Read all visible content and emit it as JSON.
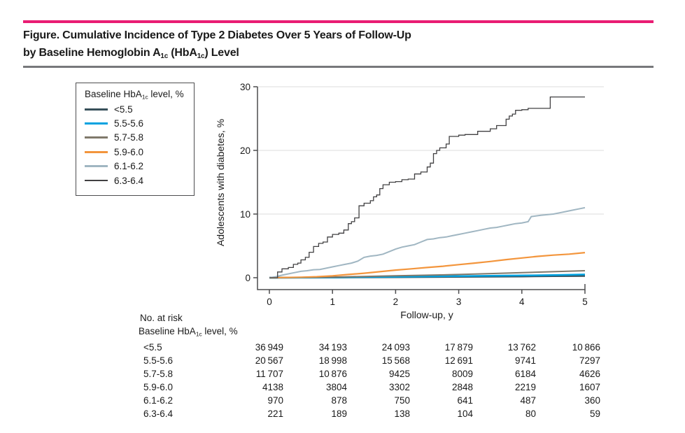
{
  "figure": {
    "title_line1": "Figure. Cumulative Incidence of Type 2 Diabetes Over 5 Years of Follow-Up",
    "title_line2_p1": "by Baseline Hemoglobin A",
    "title_line2_sub1": "1c",
    "title_line2_p2": " (HbA",
    "title_line2_sub2": "1c",
    "title_line2_p3": ") Level"
  },
  "colors": {
    "accent_rule": "#E91D73",
    "gray_rule": "#77787B",
    "axis": "#4D4D4F",
    "grid": "#E3E3E3",
    "text": "#1A1A1A"
  },
  "legend": {
    "title_prefix": "Baseline HbA",
    "title_sub": "1c",
    "title_suffix": " level, %",
    "items": [
      {
        "label": "<5.5",
        "color": "#37505A",
        "thickness": 3
      },
      {
        "label": "5.5-5.6",
        "color": "#00A2E0",
        "thickness": 3
      },
      {
        "label": "5.7-5.8",
        "color": "#80796B",
        "thickness": 3
      },
      {
        "label": "5.9-6.0",
        "color": "#F3953C",
        "thickness": 3
      },
      {
        "label": "6.1-6.2",
        "color": "#A0B6C2",
        "thickness": 3
      },
      {
        "label": "6.3-6.4",
        "color": "#414042",
        "thickness": 1.5
      }
    ]
  },
  "chart_data": {
    "type": "line",
    "subtype": "kaplan-meier cumulative incidence",
    "xlabel": "Follow-up, y",
    "ylabel": "Adolescents with diabetes, %",
    "xlim": [
      0,
      5
    ],
    "ylim": [
      0,
      30
    ],
    "x_ticks": [
      "0",
      "1",
      "2",
      "3",
      "4",
      "5"
    ],
    "y_ticks": [
      "0",
      "10",
      "20",
      "30"
    ],
    "y_gridlines": [
      10,
      20,
      30
    ],
    "legend_position": "outside-left-top",
    "series": [
      {
        "name": "<5.5",
        "color": "#37505A",
        "width": 2.5,
        "step": false,
        "points": [
          [
            0,
            0
          ],
          [
            1,
            0.03
          ],
          [
            2,
            0.08
          ],
          [
            3,
            0.13
          ],
          [
            4,
            0.2
          ],
          [
            4.5,
            0.24
          ],
          [
            5,
            0.28
          ]
        ]
      },
      {
        "name": "5.5-5.6",
        "color": "#00A2E0",
        "width": 2.5,
        "step": false,
        "points": [
          [
            0,
            0
          ],
          [
            1,
            0.05
          ],
          [
            2,
            0.15
          ],
          [
            3,
            0.25
          ],
          [
            4,
            0.35
          ],
          [
            4.5,
            0.42
          ],
          [
            5,
            0.5
          ]
        ]
      },
      {
        "name": "5.7-5.8",
        "color": "#80796B",
        "width": 2,
        "step": false,
        "points": [
          [
            0,
            0
          ],
          [
            0.5,
            0.05
          ],
          [
            1,
            0.1
          ],
          [
            1.5,
            0.2
          ],
          [
            2,
            0.3
          ],
          [
            2.5,
            0.4
          ],
          [
            3,
            0.5
          ],
          [
            3.5,
            0.65
          ],
          [
            4,
            0.8
          ],
          [
            4.5,
            0.95
          ],
          [
            5,
            1.1
          ]
        ]
      },
      {
        "name": "5.9-6.0",
        "color": "#F3953C",
        "width": 2.2,
        "step": false,
        "points": [
          [
            0,
            0
          ],
          [
            0.5,
            0.08
          ],
          [
            0.75,
            0.15
          ],
          [
            1,
            0.3
          ],
          [
            1.25,
            0.5
          ],
          [
            1.5,
            0.7
          ],
          [
            1.75,
            0.95
          ],
          [
            2,
            1.2
          ],
          [
            2.25,
            1.4
          ],
          [
            2.5,
            1.6
          ],
          [
            2.75,
            1.8
          ],
          [
            3,
            2.05
          ],
          [
            3.25,
            2.3
          ],
          [
            3.5,
            2.55
          ],
          [
            3.75,
            2.85
          ],
          [
            4,
            3.1
          ],
          [
            4.25,
            3.35
          ],
          [
            4.5,
            3.55
          ],
          [
            4.75,
            3.7
          ],
          [
            5,
            3.95
          ]
        ]
      },
      {
        "name": "6.1-6.2",
        "color": "#A0B6C2",
        "width": 2,
        "step": false,
        "points": [
          [
            0,
            0
          ],
          [
            0.1,
            0.15
          ],
          [
            0.2,
            0.4
          ],
          [
            0.3,
            0.6
          ],
          [
            0.4,
            0.8
          ],
          [
            0.5,
            1.0
          ],
          [
            0.6,
            1.1
          ],
          [
            0.7,
            1.25
          ],
          [
            0.8,
            1.3
          ],
          [
            0.9,
            1.5
          ],
          [
            1,
            1.7
          ],
          [
            1.1,
            1.9
          ],
          [
            1.2,
            2.1
          ],
          [
            1.3,
            2.3
          ],
          [
            1.4,
            2.6
          ],
          [
            1.5,
            3.2
          ],
          [
            1.6,
            3.4
          ],
          [
            1.7,
            3.5
          ],
          [
            1.8,
            3.7
          ],
          [
            1.9,
            4.1
          ],
          [
            2,
            4.5
          ],
          [
            2.1,
            4.8
          ],
          [
            2.2,
            5.0
          ],
          [
            2.3,
            5.2
          ],
          [
            2.4,
            5.6
          ],
          [
            2.5,
            6.0
          ],
          [
            2.6,
            6.1
          ],
          [
            2.7,
            6.3
          ],
          [
            2.8,
            6.4
          ],
          [
            2.9,
            6.6
          ],
          [
            3,
            6.8
          ],
          [
            3.1,
            7.0
          ],
          [
            3.2,
            7.2
          ],
          [
            3.3,
            7.4
          ],
          [
            3.4,
            7.6
          ],
          [
            3.5,
            7.8
          ],
          [
            3.6,
            7.9
          ],
          [
            3.7,
            8.1
          ],
          [
            3.8,
            8.3
          ],
          [
            3.9,
            8.5
          ],
          [
            4,
            8.6
          ],
          [
            4.1,
            8.8
          ],
          [
            4.15,
            9.6
          ],
          [
            4.3,
            9.8
          ],
          [
            4.4,
            9.9
          ],
          [
            4.5,
            10.0
          ],
          [
            4.6,
            10.2
          ],
          [
            4.7,
            10.4
          ],
          [
            4.8,
            10.6
          ],
          [
            4.9,
            10.8
          ],
          [
            5,
            11.0
          ]
        ]
      },
      {
        "name": "6.3-6.4",
        "color": "#414042",
        "width": 1.3,
        "step": true,
        "points": [
          [
            0,
            0
          ],
          [
            0.13,
            0.9
          ],
          [
            0.2,
            1.4
          ],
          [
            0.3,
            1.6
          ],
          [
            0.38,
            2.1
          ],
          [
            0.45,
            2.3
          ],
          [
            0.5,
            2.8
          ],
          [
            0.57,
            3.2
          ],
          [
            0.63,
            4.0
          ],
          [
            0.7,
            4.9
          ],
          [
            0.78,
            5.4
          ],
          [
            0.85,
            5.6
          ],
          [
            0.92,
            6.4
          ],
          [
            1.0,
            6.8
          ],
          [
            1.1,
            7.0
          ],
          [
            1.18,
            7.5
          ],
          [
            1.25,
            8.5
          ],
          [
            1.3,
            8.8
          ],
          [
            1.35,
            9.4
          ],
          [
            1.42,
            11.3
          ],
          [
            1.5,
            11.7
          ],
          [
            1.6,
            12.1
          ],
          [
            1.65,
            12.7
          ],
          [
            1.7,
            13.0
          ],
          [
            1.75,
            14.0
          ],
          [
            1.8,
            14.6
          ],
          [
            1.9,
            15.0
          ],
          [
            2.0,
            15.1
          ],
          [
            2.1,
            15.4
          ],
          [
            2.2,
            15.5
          ],
          [
            2.3,
            16.3
          ],
          [
            2.4,
            16.6
          ],
          [
            2.5,
            17.4
          ],
          [
            2.55,
            18.0
          ],
          [
            2.6,
            19.5
          ],
          [
            2.65,
            20.0
          ],
          [
            2.7,
            20.4
          ],
          [
            2.8,
            21.0
          ],
          [
            2.85,
            22.2
          ],
          [
            3.0,
            22.4
          ],
          [
            3.1,
            22.5
          ],
          [
            3.3,
            23.0
          ],
          [
            3.5,
            23.4
          ],
          [
            3.6,
            23.9
          ],
          [
            3.75,
            24.9
          ],
          [
            3.8,
            25.4
          ],
          [
            3.85,
            25.7
          ],
          [
            3.9,
            26.3
          ],
          [
            4.0,
            26.4
          ],
          [
            4.1,
            26.6
          ],
          [
            4.45,
            28.4
          ],
          [
            5.0,
            28.4
          ]
        ]
      }
    ]
  },
  "risk_table": {
    "header": "No. at risk",
    "subheader_prefix": "Baseline HbA",
    "subheader_sub": "1c",
    "subheader_suffix": " level, %",
    "rows": [
      {
        "label": "<5.5",
        "values": [
          "36 949",
          "34 193",
          "24 093",
          "17 879",
          "13 762",
          "10 866"
        ]
      },
      {
        "label": "5.5-5.6",
        "values": [
          "20 567",
          "18 998",
          "15 568",
          "12 691",
          "9741",
          "7297"
        ]
      },
      {
        "label": "5.7-5.8",
        "values": [
          "11 707",
          "10 876",
          "9425",
          "8009",
          "6184",
          "4626"
        ]
      },
      {
        "label": "5.9-6.0",
        "values": [
          "4138",
          "3804",
          "3302",
          "2848",
          "2219",
          "1607"
        ]
      },
      {
        "label": "6.1-6.2",
        "values": [
          "970",
          "878",
          "750",
          "641",
          "487",
          "360"
        ]
      },
      {
        "label": "6.3-6.4",
        "values": [
          "221",
          "189",
          "138",
          "104",
          "80",
          "59"
        ]
      }
    ]
  }
}
